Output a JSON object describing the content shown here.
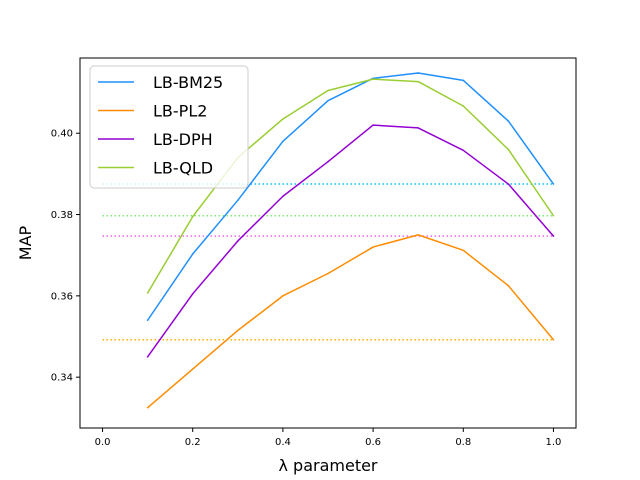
{
  "chart_data": {
    "type": "line",
    "xlabel": "λ parameter",
    "ylabel": "MAP",
    "xlim": [
      -0.05,
      1.05
    ],
    "ylim": [
      0.3275,
      0.4185
    ],
    "xticks": [
      "0.0",
      "0.2",
      "0.4",
      "0.6",
      "0.8",
      "1.0"
    ],
    "yticks": [
      "0.34",
      "0.36",
      "0.38",
      "0.40"
    ],
    "legend_position": "top-left",
    "grid": false,
    "x": [
      0.1,
      0.2,
      0.3,
      0.4,
      0.5,
      0.6,
      0.7,
      0.8,
      0.9,
      1.0
    ],
    "series": [
      {
        "name": "LB-BM25",
        "color": "#1f8fff",
        "values": [
          0.354,
          0.3703,
          0.3835,
          0.398,
          0.408,
          0.4135,
          0.4148,
          0.413,
          0.403,
          0.3875
        ],
        "baseline": 0.3875,
        "baseline_color": "#00bfff"
      },
      {
        "name": "LB-PL2",
        "color": "#ff8c00",
        "values": [
          0.3325,
          0.342,
          0.3515,
          0.36,
          0.3655,
          0.372,
          0.375,
          0.3712,
          0.3625,
          0.3492
        ],
        "baseline": 0.3492,
        "baseline_color": "#ffb000"
      },
      {
        "name": "LB-DPH",
        "color": "#9400d3",
        "values": [
          0.345,
          0.3605,
          0.3735,
          0.3845,
          0.393,
          0.402,
          0.4013,
          0.3958,
          0.3875,
          0.3747
        ],
        "baseline": 0.3747,
        "baseline_color": "#ee66ee"
      },
      {
        "name": "LB-QLD",
        "color": "#9acd32",
        "values": [
          0.3607,
          0.3795,
          0.394,
          0.4035,
          0.4105,
          0.4133,
          0.4127,
          0.4067,
          0.396,
          0.3797
        ],
        "baseline": 0.3797,
        "baseline_color": "#77ee77"
      }
    ]
  }
}
